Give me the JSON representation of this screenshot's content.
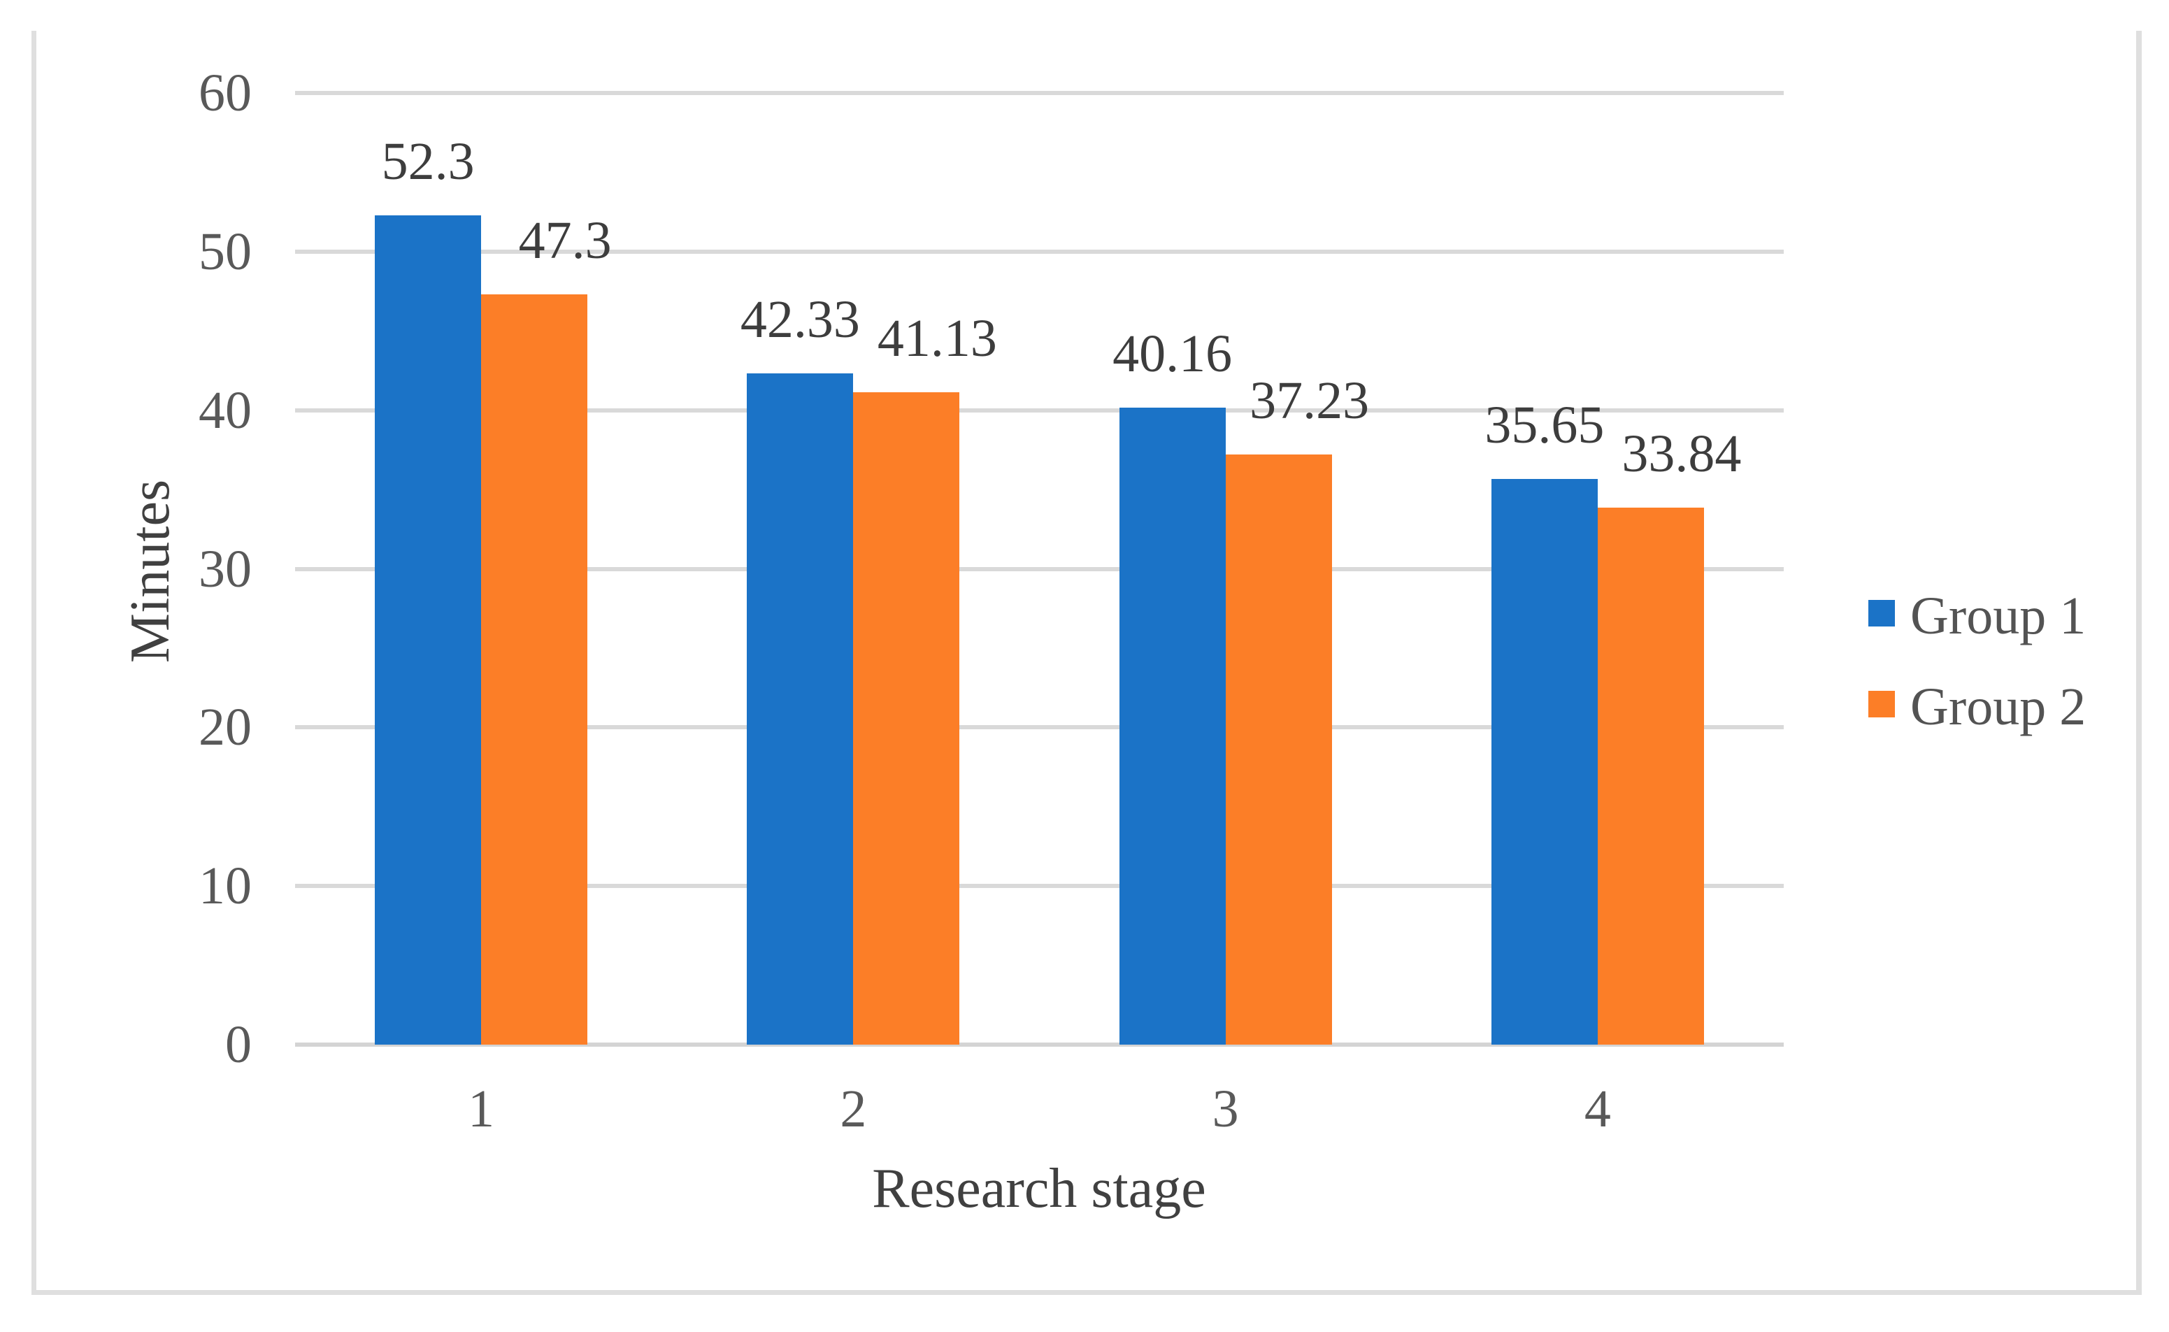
{
  "chart_data": {
    "type": "bar",
    "title": "",
    "xlabel": "Research stage",
    "ylabel": "Minutes",
    "categories": [
      "1",
      "2",
      "3",
      "4"
    ],
    "series": [
      {
        "name": "Group 1",
        "color": "#1b73c7",
        "values": [
          52.3,
          42.33,
          40.16,
          35.65
        ],
        "value_labels": [
          "52.3",
          "42.33",
          "40.16",
          "35.65"
        ]
      },
      {
        "name": "Group 2",
        "color": "#fc7e27",
        "values": [
          47.3,
          41.13,
          37.23,
          33.84
        ],
        "value_labels": [
          "47.3",
          "41.13",
          "37.23",
          "33.84"
        ]
      }
    ],
    "ylim": [
      0,
      60
    ],
    "yticks": [
      "0",
      "10",
      "20",
      "30",
      "40",
      "50",
      "60"
    ],
    "ytick_interval": 10,
    "grid": true,
    "gridline_color": "#d9d9d9",
    "legend_position": "right",
    "legend": [
      "Group 1",
      "Group 2"
    ]
  }
}
